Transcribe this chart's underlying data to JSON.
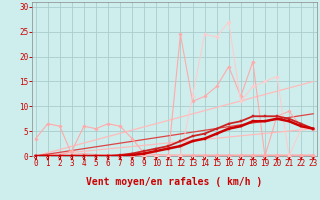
{
  "bg_color": "#ceeeed",
  "grid_color": "#aacccc",
  "xlabel": "Vent moyen/en rafales ( km/h )",
  "xlabel_color": "#cc0000",
  "xlabel_fontsize": 7,
  "tick_color": "#cc0000",
  "x_ticks": [
    0,
    1,
    2,
    3,
    4,
    5,
    6,
    7,
    8,
    9,
    10,
    11,
    12,
    13,
    14,
    15,
    16,
    17,
    18,
    19,
    20,
    21,
    22,
    23
  ],
  "y_ticks": [
    0,
    5,
    10,
    15,
    20,
    25,
    30
  ],
  "ylim": [
    0,
    31
  ],
  "xlim": [
    -0.3,
    23.3
  ],
  "lines": [
    {
      "x": [
        0,
        1,
        2,
        3,
        4,
        5,
        6,
        7,
        8,
        9,
        10,
        11,
        12,
        13,
        14,
        15,
        16,
        17,
        18,
        19,
        20,
        21,
        22,
        23
      ],
      "y": [
        3.5,
        6.5,
        6.0,
        0.3,
        0.5,
        0.3,
        0.2,
        0.1,
        0.1,
        0.1,
        0.1,
        0.1,
        0.1,
        0.1,
        0.1,
        0.1,
        0.1,
        0.1,
        0.1,
        0.1,
        0.1,
        0.1,
        0.1,
        0.1
      ],
      "color": "#ffaaaa",
      "lw": 0.8,
      "marker": "D",
      "ms": 1.8,
      "zorder": 3
    },
    {
      "x": [
        0,
        1,
        2,
        3,
        4,
        5,
        6,
        7,
        8,
        9,
        10,
        11,
        12,
        13,
        14,
        15,
        16,
        17,
        18,
        19,
        20,
        21,
        22,
        23
      ],
      "y": [
        0.1,
        0.1,
        0.1,
        1.0,
        6.0,
        5.5,
        6.5,
        6.0,
        3.5,
        0.5,
        0.3,
        0.2,
        0.2,
        0.2,
        0.2,
        0.2,
        0.2,
        0.2,
        0.2,
        0.2,
        0.2,
        0.2,
        0.2,
        0.2
      ],
      "color": "#ffaaaa",
      "lw": 0.8,
      "marker": "D",
      "ms": 1.8,
      "zorder": 3
    },
    {
      "x": [
        0,
        1,
        2,
        3,
        4,
        5,
        6,
        7,
        8,
        9,
        10,
        11,
        12,
        13,
        14,
        15,
        16,
        17,
        18,
        19,
        20,
        21,
        22,
        23
      ],
      "y": [
        0,
        0,
        0,
        0,
        0,
        0,
        0,
        0,
        0,
        0,
        0,
        0,
        24.5,
        11,
        12,
        14,
        18,
        12,
        19,
        0,
        8,
        9,
        6,
        5.5
      ],
      "color": "#ffaaaa",
      "lw": 0.8,
      "marker": "D",
      "ms": 1.8,
      "zorder": 3
    },
    {
      "x": [
        0,
        1,
        2,
        3,
        4,
        5,
        6,
        7,
        8,
        9,
        10,
        11,
        12,
        13,
        14,
        15,
        16,
        17,
        18,
        19,
        20,
        21,
        22,
        23
      ],
      "y": [
        0,
        0,
        0,
        0,
        0,
        0,
        0,
        0,
        0,
        0,
        0,
        0,
        0,
        12,
        24.5,
        24,
        27,
        11,
        14,
        15,
        16,
        0,
        5.5,
        5.5
      ],
      "color": "#ffcccc",
      "lw": 0.8,
      "marker": "D",
      "ms": 1.8,
      "zorder": 3
    },
    {
      "x": [
        0,
        23
      ],
      "y": [
        0,
        15
      ],
      "color": "#ffbbbb",
      "lw": 0.9,
      "marker": null,
      "ms": 0,
      "zorder": 2
    },
    {
      "x": [
        0,
        23
      ],
      "y": [
        0,
        5.5
      ],
      "color": "#ffbbbb",
      "lw": 0.9,
      "marker": null,
      "ms": 0,
      "zorder": 2
    },
    {
      "x": [
        0,
        23
      ],
      "y": [
        0,
        8.5
      ],
      "color": "#dd4444",
      "lw": 0.9,
      "marker": null,
      "ms": 0,
      "zorder": 2
    },
    {
      "x": [
        0,
        1,
        2,
        3,
        4,
        5,
        6,
        7,
        8,
        9,
        10,
        11,
        12,
        13,
        14,
        15,
        16,
        17,
        18,
        19,
        20,
        21,
        22,
        23
      ],
      "y": [
        0,
        0,
        0,
        0,
        0,
        0,
        0,
        0.2,
        0.5,
        1.0,
        1.5,
        2.0,
        3.0,
        4.0,
        4.5,
        5.5,
        6.5,
        7.0,
        8.0,
        8.0,
        8.0,
        7.5,
        6.5,
        5.5
      ],
      "color": "#cc2222",
      "lw": 1.3,
      "marker": "s",
      "ms": 2.0,
      "zorder": 5
    },
    {
      "x": [
        0,
        1,
        2,
        3,
        4,
        5,
        6,
        7,
        8,
        9,
        10,
        11,
        12,
        13,
        14,
        15,
        16,
        17,
        18,
        19,
        20,
        21,
        22,
        23
      ],
      "y": [
        0,
        0,
        0,
        0,
        0,
        0,
        0,
        0,
        0.2,
        0.5,
        1.0,
        1.5,
        2.0,
        3.0,
        3.5,
        4.5,
        5.5,
        6.0,
        7.0,
        7.0,
        7.5,
        7.0,
        6.0,
        5.5
      ],
      "color": "#cc0000",
      "lw": 1.8,
      "marker": "s",
      "ms": 2.0,
      "zorder": 6
    }
  ],
  "arrow_color": "#cc0000",
  "font_family": "monospace"
}
